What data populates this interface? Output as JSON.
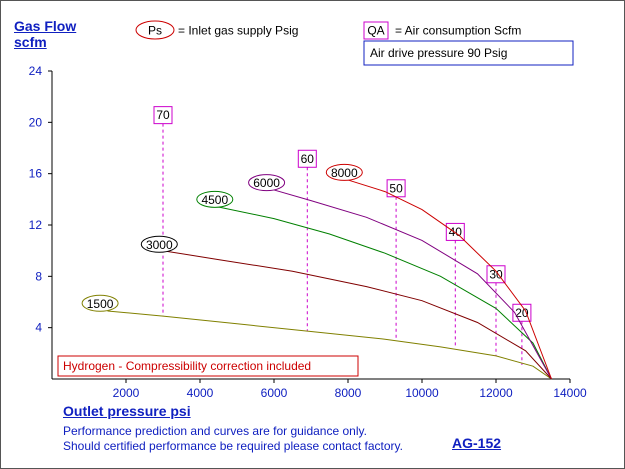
{
  "header": {
    "y_title_line1": "Gas Flow",
    "y_title_line2": "scfm",
    "ps_label": "Ps",
    "ps_text": "= Inlet gas supply  Psig",
    "qa_label": "QA",
    "qa_text": "= Air consumption  Scfm",
    "air_drive": "Air drive pressure  90 Psig"
  },
  "footer": {
    "x_title": "Outlet pressure   psi",
    "note_line1": "Performance prediction and curves are for guidance only.",
    "note_line2": "Should certified performance be required please contact factory.",
    "model": "AG-152"
  },
  "hydrogen_note": "Hydrogen - Compressibility correction included",
  "colors": {
    "axis_text": "#1020c0",
    "qa_marker": "#cc00cc",
    "ps_marker": "#cc0000",
    "note_border": "#cc0000"
  },
  "chart_data": {
    "type": "line",
    "xlim": [
      0,
      14000
    ],
    "ylim": [
      0,
      24
    ],
    "x_ticks": [
      "2000",
      "4000",
      "6000",
      "8000",
      "10000",
      "12000",
      "14000"
    ],
    "y_ticks": [
      "4",
      "8",
      "12",
      "16",
      "20",
      "24"
    ],
    "grid": false,
    "series": [
      {
        "name": "1500",
        "color": "#808000",
        "ellipse": "#808000",
        "label_pos": [
          1300,
          5.9
        ],
        "points": [
          [
            1500,
            5.3
          ],
          [
            3000,
            4.9
          ],
          [
            5000,
            4.3
          ],
          [
            7000,
            3.7
          ],
          [
            9000,
            3.1
          ],
          [
            10500,
            2.5
          ],
          [
            12000,
            1.8
          ],
          [
            13000,
            1.0
          ],
          [
            13500,
            0
          ]
        ]
      },
      {
        "name": "3000",
        "color": "#800000",
        "ellipse": "#000000",
        "label_pos": [
          2900,
          10.5
        ],
        "points": [
          [
            3000,
            10.0
          ],
          [
            4500,
            9.3
          ],
          [
            6500,
            8.4
          ],
          [
            8500,
            7.2
          ],
          [
            10000,
            6.1
          ],
          [
            11500,
            4.4
          ],
          [
            12800,
            2.2
          ],
          [
            13500,
            0
          ]
        ]
      },
      {
        "name": "4500",
        "color": "#008000",
        "ellipse": "#008000",
        "label_pos": [
          4400,
          14.0
        ],
        "points": [
          [
            4500,
            13.4
          ],
          [
            6000,
            12.5
          ],
          [
            7500,
            11.3
          ],
          [
            9000,
            9.8
          ],
          [
            10500,
            8.0
          ],
          [
            12000,
            5.5
          ],
          [
            13000,
            2.8
          ],
          [
            13500,
            0
          ]
        ]
      },
      {
        "name": "6000",
        "color": "#800080",
        "ellipse": "#800080",
        "label_pos": [
          5800,
          15.3
        ],
        "points": [
          [
            5800,
            14.9
          ],
          [
            7000,
            13.9
          ],
          [
            8500,
            12.6
          ],
          [
            10000,
            10.8
          ],
          [
            11500,
            8.2
          ],
          [
            12500,
            5.2
          ],
          [
            13500,
            0
          ]
        ]
      },
      {
        "name": "8000",
        "color": "#cc0000",
        "ellipse": "#cc0000",
        "label_pos": [
          7900,
          16.1
        ],
        "points": [
          [
            7900,
            15.6
          ],
          [
            9000,
            14.6
          ],
          [
            10000,
            13.2
          ],
          [
            11000,
            11.2
          ],
          [
            12000,
            8.4
          ],
          [
            12800,
            5.3
          ],
          [
            13500,
            0
          ]
        ]
      }
    ],
    "qa_markers": [
      {
        "label": "70",
        "x": 3000,
        "y_top": 20.6,
        "y_bottom": 4.9
      },
      {
        "label": "60",
        "x": 6900,
        "y_top": 17.2,
        "y_bottom": 3.75
      },
      {
        "label": "50",
        "x": 9300,
        "y_top": 14.9,
        "y_bottom": 3.0
      },
      {
        "label": "40",
        "x": 10900,
        "y_top": 11.5,
        "y_bottom": 2.45
      },
      {
        "label": "30",
        "x": 12000,
        "y_top": 8.2,
        "y_bottom": 1.8
      },
      {
        "label": "20",
        "x": 12700,
        "y_top": 5.2,
        "y_bottom": 1.1
      }
    ]
  }
}
